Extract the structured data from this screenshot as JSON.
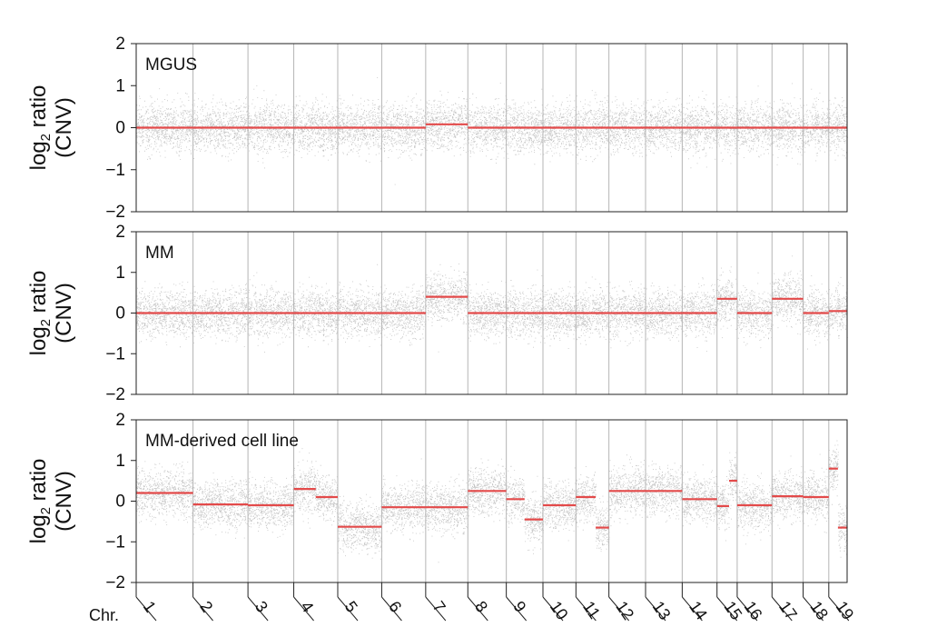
{
  "chart_data": {
    "type": "scatter",
    "x_label": "Chr.",
    "chromosomes": [
      "1",
      "2",
      "3",
      "4",
      "5",
      "6",
      "7",
      "8",
      "9",
      "10",
      "11",
      "12",
      "13",
      "14",
      "15",
      "16",
      "17",
      "18",
      "19"
    ],
    "y_label": {
      "main": "log",
      "sub": "2",
      "rest": " ratio",
      "line2": "(CNV)"
    },
    "yticks": [
      -2,
      -1,
      0,
      1,
      2
    ],
    "ytick_labels": [
      "−2",
      "−1",
      "0",
      "1",
      "2"
    ],
    "ylim": [
      -2,
      2
    ],
    "colors": {
      "points": "#2b2b2b",
      "segments": "#e34a4a",
      "boundary": "#b5b5b5",
      "frame": "#222222"
    },
    "panels": [
      {
        "title": "MGUS",
        "segments": [
          [
            0,
            1,
            0.0
          ],
          [
            1,
            2,
            0.0
          ],
          [
            2,
            3,
            0.0
          ],
          [
            3,
            4,
            0.0
          ],
          [
            4,
            5,
            0.0
          ],
          [
            5,
            6,
            0.0
          ],
          [
            6,
            7,
            0.08
          ],
          [
            7,
            8,
            0.0
          ],
          [
            8,
            9,
            0.0
          ],
          [
            9,
            10,
            0.0
          ],
          [
            10,
            11,
            0.0
          ],
          [
            11,
            12,
            0.0
          ],
          [
            12,
            13,
            0.0
          ],
          [
            13,
            14,
            0.0
          ],
          [
            14,
            15,
            0.0
          ],
          [
            15,
            16,
            0.0
          ],
          [
            16,
            17,
            0.0
          ],
          [
            17,
            18,
            0.0
          ],
          [
            18,
            19,
            0.0
          ]
        ]
      },
      {
        "title": "MM",
        "segments": [
          [
            0,
            1,
            0.0
          ],
          [
            1,
            2,
            0.0
          ],
          [
            2,
            3,
            0.0
          ],
          [
            3,
            4,
            0.0
          ],
          [
            4,
            5,
            0.0
          ],
          [
            5,
            6,
            0.0
          ],
          [
            6,
            7,
            0.4
          ],
          [
            7,
            8,
            0.0
          ],
          [
            8,
            9,
            0.0
          ],
          [
            9,
            10,
            0.0
          ],
          [
            10,
            11,
            0.0
          ],
          [
            11,
            12,
            0.0
          ],
          [
            12,
            13,
            0.0
          ],
          [
            13,
            14,
            0.0
          ],
          [
            14,
            15,
            0.35
          ],
          [
            15,
            16,
            0.0
          ],
          [
            16,
            17,
            0.35
          ],
          [
            17,
            18,
            0.0
          ],
          [
            18,
            19,
            0.05
          ]
        ]
      },
      {
        "title": "MM-derived cell line",
        "segments": [
          [
            0,
            1,
            0.2
          ],
          [
            1,
            2,
            -0.08
          ],
          [
            2,
            3,
            -0.1
          ],
          [
            3,
            3.5,
            0.3
          ],
          [
            3.5,
            4,
            0.1
          ],
          [
            4,
            5,
            -0.63
          ],
          [
            5,
            6,
            -0.15
          ],
          [
            6,
            7,
            -0.15
          ],
          [
            7,
            8,
            0.25
          ],
          [
            8,
            8.5,
            0.05
          ],
          [
            8.5,
            9,
            -0.45
          ],
          [
            9,
            10,
            -0.1
          ],
          [
            10,
            10.6,
            0.1
          ],
          [
            10.6,
            11,
            -0.65
          ],
          [
            11,
            12,
            0.25
          ],
          [
            12,
            13,
            0.25
          ],
          [
            13,
            14,
            0.05
          ],
          [
            14,
            14.6,
            -0.12
          ],
          [
            14.6,
            15,
            0.5
          ],
          [
            15,
            16,
            -0.1
          ],
          [
            16,
            17,
            0.12
          ],
          [
            17,
            18,
            0.1
          ],
          [
            18,
            18.5,
            0.8
          ],
          [
            18.5,
            19,
            -0.65
          ]
        ]
      }
    ]
  }
}
